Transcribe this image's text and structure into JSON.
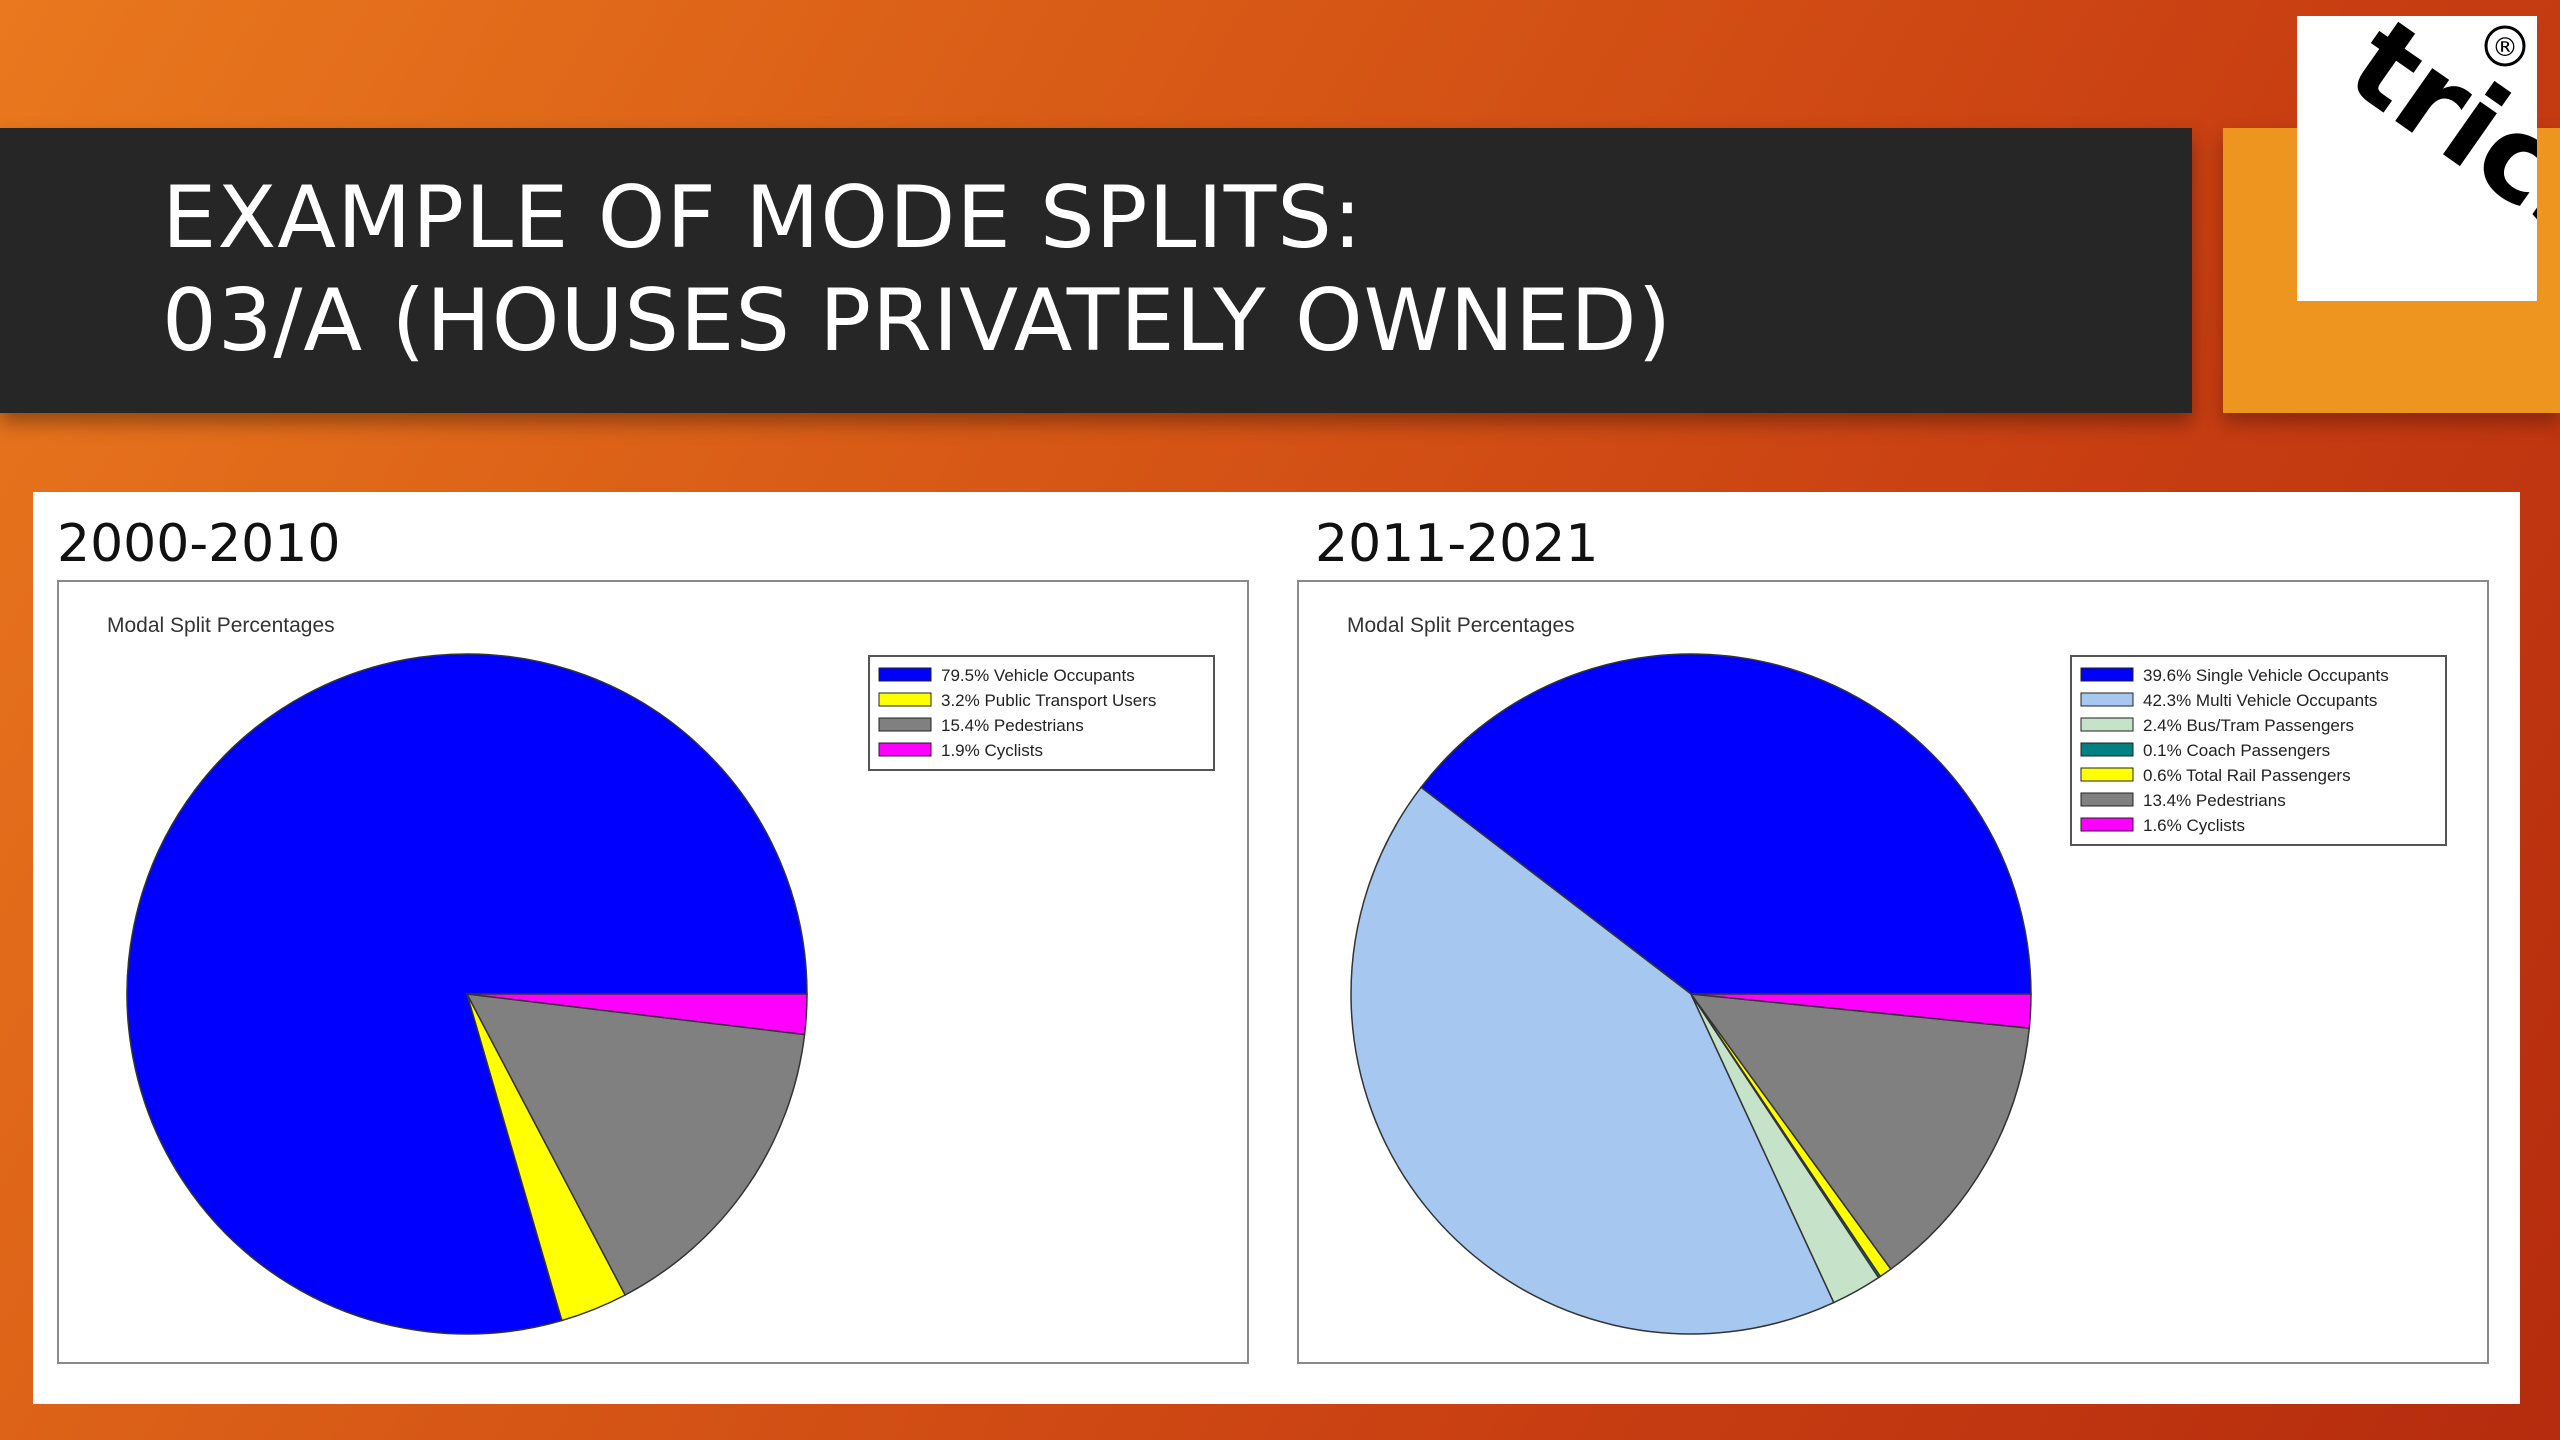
{
  "slide": {
    "title_line1": "EXAMPLE OF MODE SPLITS:",
    "title_line2": "03/A (HOUSES PRIVATELY OWNED)",
    "logo_text": "trics",
    "logo_mark": "®"
  },
  "colors": {
    "title_bar": "#262626",
    "accent_orange": "#ee951f"
  },
  "chart_data": [
    {
      "type": "pie",
      "heading": "2000-2010",
      "title": "Modal Split Percentages",
      "legend_position": "top-right",
      "slices": [
        {
          "label": "79.5% Vehicle Occupants",
          "value": 79.5,
          "color": "#0000ff"
        },
        {
          "label": "3.2% Public Transport Users",
          "value": 3.2,
          "color": "#ffff00"
        },
        {
          "label": "15.4% Pedestrians",
          "value": 15.4,
          "color": "#808080"
        },
        {
          "label": "1.9% Cyclists",
          "value": 1.9,
          "color": "#ff00ff"
        }
      ]
    },
    {
      "type": "pie",
      "heading": "2011-2021",
      "title": "Modal Split Percentages",
      "legend_position": "top-right",
      "slices": [
        {
          "label": "39.6% Single Vehicle Occupants",
          "value": 39.6,
          "color": "#0000ff"
        },
        {
          "label": "42.3% Multi Vehicle Occupants",
          "value": 42.3,
          "color": "#a6c8f0"
        },
        {
          "label": "2.4% Bus/Tram Passengers",
          "value": 2.4,
          "color": "#c6e2c8"
        },
        {
          "label": "0.1% Coach Passengers",
          "value": 0.1,
          "color": "#008080"
        },
        {
          "label": "0.6% Total Rail Passengers",
          "value": 0.6,
          "color": "#ffff00"
        },
        {
          "label": "13.4% Pedestrians",
          "value": 13.4,
          "color": "#808080"
        },
        {
          "label": "1.6% Cyclists",
          "value": 1.6,
          "color": "#ff00ff"
        }
      ]
    }
  ]
}
